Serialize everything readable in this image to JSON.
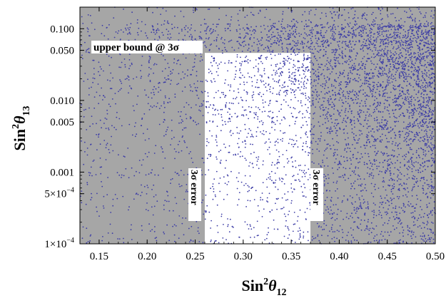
{
  "chart_data": {
    "type": "scatter",
    "title": "",
    "xlabel": "Sin",
    "xlabel_sup": "2",
    "xlabel_theta": "θ",
    "xlabel_sub": "12",
    "ylabel": "Sin",
    "ylabel_sup": "2",
    "ylabel_theta": "θ",
    "ylabel_sub": "13",
    "xlim": [
      0.13,
      0.5
    ],
    "ylim": [
      0.0001,
      0.2
    ],
    "yscale": "log",
    "x_ticks": [
      {
        "value": 0.15,
        "label": "0.15"
      },
      {
        "value": 0.2,
        "label": "0.20"
      },
      {
        "value": 0.25,
        "label": "0.25"
      },
      {
        "value": 0.3,
        "label": "0.30"
      },
      {
        "value": 0.35,
        "label": "0.35"
      },
      {
        "value": 0.4,
        "label": "0.40"
      },
      {
        "value": 0.45,
        "label": "0.45"
      },
      {
        "value": 0.5,
        "label": "0.50"
      }
    ],
    "y_ticks": [
      {
        "value": 0.1,
        "label": "0.100"
      },
      {
        "value": 0.05,
        "label": "0.050"
      },
      {
        "value": 0.01,
        "label": "0.010"
      },
      {
        "value": 0.005,
        "label": "0.005"
      },
      {
        "value": 0.001,
        "label": "0.001"
      },
      {
        "value": 0.0005,
        "label": "5×10",
        "exp": "−4"
      },
      {
        "value": 0.0001,
        "label": "1×10",
        "exp": "−4"
      }
    ],
    "allowed_region": {
      "x_min": 0.26,
      "x_max": 0.37,
      "y_max": 0.046
    },
    "annotations": {
      "upper_bound": "upper bound @ 3σ",
      "left_error": "3σ error",
      "right_error": "3σ error"
    },
    "series": [
      {
        "name": "scan points",
        "marker": "dot",
        "generator": {
          "count": 5200,
          "seed": 20240607,
          "x_range": [
            0.13,
            0.5
          ],
          "y_range": [
            0.0001,
            0.2
          ],
          "density_trend": "increasing toward high Sin2theta12 and high Sin2theta13"
        }
      }
    ],
    "colors": {
      "plot_background": "#a6a6a6",
      "allowed_region": "#ffffff",
      "points": "#3c3ca6",
      "axis": "#000000"
    }
  }
}
